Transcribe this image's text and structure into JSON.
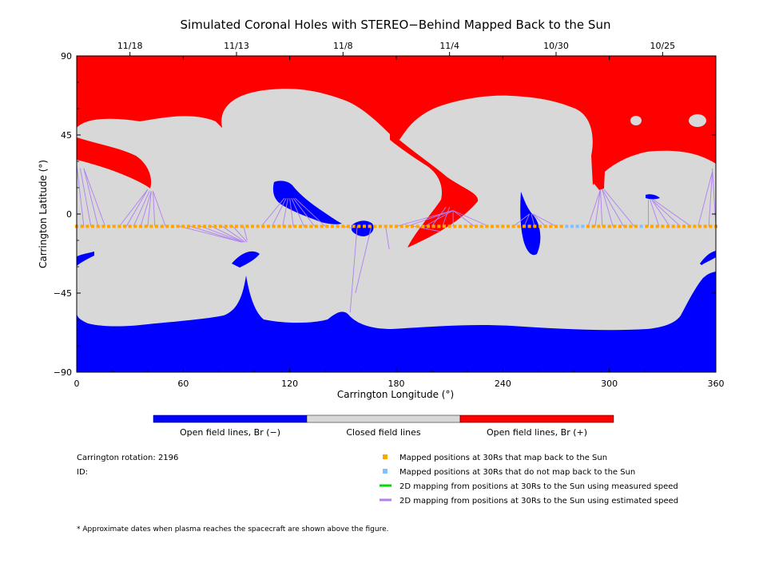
{
  "chart_data": {
    "type": "map",
    "title": "Simulated Coronal Holes with STEREO−Behind Mapped Back to the Sun",
    "xlabel": "Carrington Longitude (°)",
    "ylabel": "Carrington Latitude (°)",
    "xlim": [
      0,
      360
    ],
    "ylim": [
      -90,
      90
    ],
    "x_ticks": [
      "0",
      "60",
      "120",
      "180",
      "240",
      "300",
      "360"
    ],
    "y_ticks": [
      "90",
      "45",
      "0",
      "−45",
      "−90"
    ],
    "date_ticks": [
      {
        "label": "11/18",
        "lon": 30
      },
      {
        "label": "11/13",
        "lon": 90
      },
      {
        "label": "11/8",
        "lon": 150
      },
      {
        "label": "11/4",
        "lon": 210
      },
      {
        "label": "10/30",
        "lon": 270
      },
      {
        "label": "10/25",
        "lon": 330
      }
    ],
    "spacecraft_latitude": -7,
    "colorbar": {
      "colors": [
        "#0000ff",
        "#d8d8d8",
        "#ff0000"
      ],
      "labels": [
        "Open field lines, Br (−)",
        "Closed field lines",
        "Open field lines, Br (+)"
      ]
    },
    "not_mapped_longitudes": [
      275,
      278,
      281,
      284,
      317
    ],
    "field_colors": {
      "closed": "#d8d8d8",
      "positive": "#ff0000",
      "negative": "#0000ff"
    },
    "series": [
      {
        "name": "Mapped positions at 30Rs that map back to the Sun",
        "color": "#ffa500",
        "marker": "square"
      },
      {
        "name": "Mapped positions at 30Rs that do not map back to the Sun",
        "color": "#80c0ff",
        "marker": "square"
      },
      {
        "name": "2D mapping from positions at 30Rs to the Sun using measured speed",
        "color": "#00dd00",
        "marker": "line"
      },
      {
        "name": "2D mapping from positions at 30Rs to the Sun using estimated speed",
        "color": "#b07ff0",
        "marker": "line"
      }
    ],
    "mapping_lines": [
      {
        "from": [
          0,
          2
        ],
        "to": [
          0,
          28
        ]
      },
      {
        "from": [
          4,
          2
        ],
        "to": [
          0,
          28
        ]
      },
      {
        "from": [
          8,
          2
        ],
        "to": [
          2,
          26
        ]
      },
      {
        "from": [
          12,
          2
        ],
        "to": [
          4,
          26
        ]
      },
      {
        "from": [
          16,
          2
        ],
        "to": [
          4,
          26
        ]
      },
      {
        "from": [
          24,
          2
        ],
        "to": [
          40,
          14
        ]
      },
      {
        "from": [
          28,
          2
        ],
        "to": [
          40,
          14
        ]
      },
      {
        "from": [
          32,
          2
        ],
        "to": [
          41,
          13
        ]
      },
      {
        "from": [
          36,
          2
        ],
        "to": [
          42,
          13
        ]
      },
      {
        "from": [
          40,
          2
        ],
        "to": [
          42,
          13
        ]
      },
      {
        "from": [
          44,
          2
        ],
        "to": [
          43,
          13
        ]
      },
      {
        "from": [
          50,
          2
        ],
        "to": [
          43,
          13
        ]
      },
      {
        "from": [
          58,
          2
        ],
        "to": [
          93,
          -16
        ]
      },
      {
        "from": [
          64,
          2
        ],
        "to": [
          93,
          -16
        ]
      },
      {
        "from": [
          70,
          2
        ],
        "to": [
          94,
          -16
        ]
      },
      {
        "from": [
          76,
          2
        ],
        "to": [
          94,
          -16
        ]
      },
      {
        "from": [
          82,
          2
        ],
        "to": [
          95,
          -16
        ]
      },
      {
        "from": [
          88,
          2
        ],
        "to": [
          96,
          -16
        ]
      },
      {
        "from": [
          94,
          2
        ],
        "to": [
          96,
          -15
        ]
      },
      {
        "from": [
          104,
          2
        ],
        "to": [
          117,
          9
        ]
      },
      {
        "from": [
          110,
          2
        ],
        "to": [
          118,
          9
        ]
      },
      {
        "from": [
          116,
          2
        ],
        "to": [
          119,
          9
        ]
      },
      {
        "from": [
          122,
          2
        ],
        "to": [
          120,
          9
        ]
      },
      {
        "from": [
          128,
          2
        ],
        "to": [
          121,
          9
        ]
      },
      {
        "from": [
          134,
          2
        ],
        "to": [
          122,
          9
        ]
      },
      {
        "from": [
          140,
          2
        ],
        "to": [
          123,
          9
        ]
      },
      {
        "from": [
          150,
          2
        ],
        "to": [
          155,
          -8
        ]
      },
      {
        "from": [
          156,
          2
        ],
        "to": [
          155,
          -8
        ]
      },
      {
        "from": [
          158,
          2
        ],
        "to": [
          154,
          -56
        ]
      },
      {
        "from": [
          166,
          2
        ],
        "to": [
          157,
          -45
        ]
      },
      {
        "from": [
          174,
          2
        ],
        "to": [
          176,
          -20
        ]
      },
      {
        "from": [
          180,
          2
        ],
        "to": [
          212,
          2
        ]
      },
      {
        "from": [
          186,
          2
        ],
        "to": [
          212,
          2
        ]
      },
      {
        "from": [
          190,
          2
        ],
        "to": [
          205,
          -10
        ]
      },
      {
        "from": [
          196,
          2
        ],
        "to": [
          212,
          2
        ]
      },
      {
        "from": [
          200,
          2
        ],
        "to": [
          208,
          4
        ]
      },
      {
        "from": [
          206,
          2
        ],
        "to": [
          210,
          4
        ]
      },
      {
        "from": [
          212,
          2
        ],
        "to": [
          212,
          2
        ]
      },
      {
        "from": [
          224,
          2
        ],
        "to": [
          212,
          2
        ]
      },
      {
        "from": [
          232,
          2
        ],
        "to": [
          212,
          2
        ]
      },
      {
        "from": [
          246,
          2
        ],
        "to": [
          255,
          0
        ]
      },
      {
        "from": [
          252,
          2
        ],
        "to": [
          255,
          0
        ]
      },
      {
        "from": [
          258,
          2
        ],
        "to": [
          256,
          0
        ]
      },
      {
        "from": [
          264,
          2
        ],
        "to": [
          257,
          0
        ]
      },
      {
        "from": [
          270,
          2
        ],
        "to": [
          257,
          0
        ]
      },
      {
        "from": [
          288,
          2
        ],
        "to": [
          295,
          14
        ]
      },
      {
        "from": [
          292,
          2
        ],
        "to": [
          295,
          14
        ]
      },
      {
        "from": [
          296,
          2
        ],
        "to": [
          295,
          14
        ]
      },
      {
        "from": [
          302,
          2
        ],
        "to": [
          296,
          14
        ]
      },
      {
        "from": [
          308,
          2
        ],
        "to": [
          296,
          14
        ]
      },
      {
        "from": [
          314,
          2
        ],
        "to": [
          297,
          14
        ]
      },
      {
        "from": [
          322,
          2
        ],
        "to": [
          322,
          8
        ]
      },
      {
        "from": [
          328,
          2
        ],
        "to": [
          323,
          8
        ]
      },
      {
        "from": [
          334,
          2
        ],
        "to": [
          324,
          8
        ]
      },
      {
        "from": [
          340,
          2
        ],
        "to": [
          324,
          8
        ]
      },
      {
        "from": [
          346,
          2
        ],
        "to": [
          325,
          8
        ]
      },
      {
        "from": [
          350,
          2
        ],
        "to": [
          358,
          24
        ]
      },
      {
        "from": [
          356,
          2
        ],
        "to": [
          358,
          24
        ]
      },
      {
        "from": [
          360,
          2
        ],
        "to": [
          358,
          26
        ]
      }
    ]
  },
  "info": {
    "rotation": "Carrington rotation: 2196",
    "id": "ID:",
    "footnote": "* Approximate dates when plasma reaches the spacecraft are shown above the figure."
  }
}
